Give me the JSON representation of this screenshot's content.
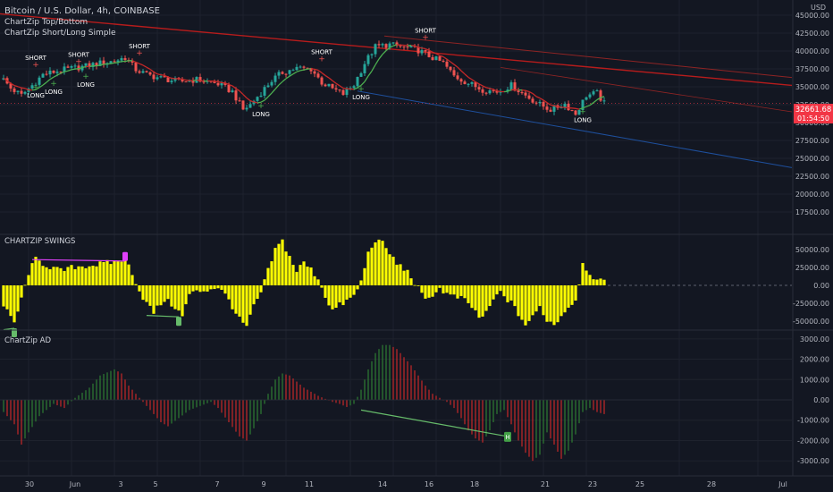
{
  "header": {
    "title": "Bitcoin / U.S. Dollar, 4h, COINBASE",
    "indicator1": "ChartZip Top/Bottom",
    "indicator2": "ChartZip Short/Long Simple",
    "currency": "USD"
  },
  "price_tag": {
    "value": "32661.68",
    "countdown": "01:54:50"
  },
  "colors": {
    "background": "#131722",
    "up": "#26a69a",
    "down": "#ef5350",
    "swings": "#ffff00",
    "ad_up": "#2e7d32",
    "ad_down": "#c62828",
    "trend_red": "#b71c1c",
    "trend_blue": "#2962ff",
    "magenta": "#e040fb",
    "green_line": "#66bb6a"
  },
  "panes": {
    "swings_title": "CHARTZIP SWINGS",
    "ad_title": "ChartZip AD"
  },
  "x_axis": {
    "labels": [
      "30",
      "Jun",
      "3",
      "5",
      "7",
      "9",
      "11",
      "14",
      "16",
      "18",
      "21",
      "23",
      "25",
      "28",
      "Jul"
    ]
  },
  "axes": {
    "price_ticks": [
      "45000.00",
      "42500.00",
      "40000.00",
      "37500.00",
      "35000.00",
      "32500.00",
      "30000.00",
      "27500.00",
      "25000.00",
      "22500.00",
      "20000.00",
      "17500.00"
    ],
    "swing_ticks": [
      "50000.00",
      "25000.00",
      "0.00",
      "-25000.00",
      "-50000.00"
    ],
    "ad_ticks": [
      "3000.00",
      "2000.00",
      "1000.00",
      "0.00",
      "-1000.00",
      "-2000.00",
      "-3000.00"
    ]
  },
  "chart_data": [
    {
      "type": "candlestick",
      "title": "Bitcoin / U.S. Dollar, 4h, COINBASE",
      "ylabel": "USD",
      "ylim": [
        15000,
        46000
      ],
      "x": [
        "30",
        "Jun",
        "3",
        "5",
        "7",
        "9",
        "11",
        "14",
        "16",
        "18",
        "21",
        "23",
        "25",
        "28",
        "Jul"
      ],
      "last_price": 32661.68,
      "anchors": [
        {
          "i": 0,
          "p": 36000
        },
        {
          "i": 2,
          "p": 34800
        },
        {
          "i": 5,
          "p": 33800
        },
        {
          "i": 8,
          "p": 35200
        },
        {
          "i": 11,
          "p": 36700
        },
        {
          "i": 16,
          "p": 37300
        },
        {
          "i": 22,
          "p": 37800
        },
        {
          "i": 27,
          "p": 38300
        },
        {
          "i": 31,
          "p": 38600
        },
        {
          "i": 34,
          "p": 39100
        },
        {
          "i": 37,
          "p": 37400
        },
        {
          "i": 40,
          "p": 36700
        },
        {
          "i": 44,
          "p": 36200
        },
        {
          "i": 49,
          "p": 35700
        },
        {
          "i": 54,
          "p": 36000
        },
        {
          "i": 60,
          "p": 35400
        },
        {
          "i": 64,
          "p": 34300
        },
        {
          "i": 67,
          "p": 31800
        },
        {
          "i": 69,
          "p": 32500
        },
        {
          "i": 72,
          "p": 34200
        },
        {
          "i": 75,
          "p": 35900
        },
        {
          "i": 78,
          "p": 37000
        },
        {
          "i": 82,
          "p": 37600
        },
        {
          "i": 86,
          "p": 37500
        },
        {
          "i": 89,
          "p": 35600
        },
        {
          "i": 92,
          "p": 34700
        },
        {
          "i": 95,
          "p": 34000
        },
        {
          "i": 98,
          "p": 35300
        },
        {
          "i": 101,
          "p": 38300
        },
        {
          "i": 104,
          "p": 40600
        },
        {
          "i": 108,
          "p": 40900
        },
        {
          "i": 112,
          "p": 40500
        },
        {
          "i": 116,
          "p": 40100
        },
        {
          "i": 119,
          "p": 39300
        },
        {
          "i": 123,
          "p": 38300
        },
        {
          "i": 126,
          "p": 36500
        },
        {
          "i": 130,
          "p": 35500
        },
        {
          "i": 134,
          "p": 34600
        },
        {
          "i": 138,
          "p": 34300
        },
        {
          "i": 142,
          "p": 35200
        },
        {
          "i": 146,
          "p": 33800
        },
        {
          "i": 150,
          "p": 32500
        },
        {
          "i": 153,
          "p": 31800
        },
        {
          "i": 157,
          "p": 32600
        },
        {
          "i": 160,
          "p": 31200
        },
        {
          "i": 163,
          "p": 33800
        },
        {
          "i": 166,
          "p": 34100
        },
        {
          "i": 168,
          "p": 32661
        }
      ],
      "signals": [
        {
          "label": "SHORT",
          "i": 9,
          "price": 37900,
          "side": "above"
        },
        {
          "label": "LONG",
          "i": 9,
          "price": 34600,
          "side": "below"
        },
        {
          "label": "LONG",
          "i": 14,
          "price": 35100,
          "side": "below"
        },
        {
          "label": "SHORT",
          "i": 21,
          "price": 38300,
          "side": "above"
        },
        {
          "label": "LONG",
          "i": 23,
          "price": 36100,
          "side": "below"
        },
        {
          "label": "SHORT",
          "i": 38,
          "price": 39500,
          "side": "above"
        },
        {
          "label": "LONG",
          "i": 72,
          "price": 32000,
          "side": "below"
        },
        {
          "label": "SHORT",
          "i": 89,
          "price": 38700,
          "side": "above"
        },
        {
          "label": "LONG",
          "i": 100,
          "price": 34400,
          "side": "below"
        },
        {
          "label": "SHORT",
          "i": 118,
          "price": 41700,
          "side": "above"
        },
        {
          "label": "LONG",
          "i": 162,
          "price": 31200,
          "side": "below"
        }
      ]
    },
    {
      "type": "bar",
      "title": "CHARTZIP SWINGS",
      "ylim": [
        -60000,
        65000
      ],
      "anchors": [
        {
          "i": 0,
          "v": -30000
        },
        {
          "i": 3,
          "v": -52000
        },
        {
          "i": 5,
          "v": -20000
        },
        {
          "i": 7,
          "v": 18000
        },
        {
          "i": 9,
          "v": 36000
        },
        {
          "i": 12,
          "v": 28000
        },
        {
          "i": 16,
          "v": 20000
        },
        {
          "i": 20,
          "v": 26000
        },
        {
          "i": 24,
          "v": 28000
        },
        {
          "i": 28,
          "v": 30000
        },
        {
          "i": 32,
          "v": 34000
        },
        {
          "i": 34,
          "v": 38000
        },
        {
          "i": 36,
          "v": 18000
        },
        {
          "i": 38,
          "v": -8000
        },
        {
          "i": 40,
          "v": -25000
        },
        {
          "i": 42,
          "v": -38000
        },
        {
          "i": 45,
          "v": -20000
        },
        {
          "i": 48,
          "v": -30000
        },
        {
          "i": 50,
          "v": -44000
        },
        {
          "i": 52,
          "v": -12000
        },
        {
          "i": 55,
          "v": -8000
        },
        {
          "i": 58,
          "v": -5000
        },
        {
          "i": 60,
          "v": -2000
        },
        {
          "i": 63,
          "v": -20000
        },
        {
          "i": 66,
          "v": -48000
        },
        {
          "i": 68,
          "v": -58000
        },
        {
          "i": 70,
          "v": -30000
        },
        {
          "i": 72,
          "v": -10000
        },
        {
          "i": 74,
          "v": 20000
        },
        {
          "i": 76,
          "v": 50000
        },
        {
          "i": 78,
          "v": 62000
        },
        {
          "i": 80,
          "v": 40000
        },
        {
          "i": 82,
          "v": 20000
        },
        {
          "i": 84,
          "v": 32000
        },
        {
          "i": 86,
          "v": 22000
        },
        {
          "i": 88,
          "v": 10000
        },
        {
          "i": 90,
          "v": -15000
        },
        {
          "i": 92,
          "v": -35000
        },
        {
          "i": 94,
          "v": -28000
        },
        {
          "i": 96,
          "v": -22000
        },
        {
          "i": 98,
          "v": -15000
        },
        {
          "i": 100,
          "v": 5000
        },
        {
          "i": 102,
          "v": 45000
        },
        {
          "i": 104,
          "v": 64000
        },
        {
          "i": 106,
          "v": 58000
        },
        {
          "i": 108,
          "v": 45000
        },
        {
          "i": 110,
          "v": 30000
        },
        {
          "i": 112,
          "v": 24000
        },
        {
          "i": 114,
          "v": 12000
        },
        {
          "i": 116,
          "v": -5000
        },
        {
          "i": 118,
          "v": -22000
        },
        {
          "i": 120,
          "v": -12000
        },
        {
          "i": 122,
          "v": -5000
        },
        {
          "i": 125,
          "v": -15000
        },
        {
          "i": 128,
          "v": -18000
        },
        {
          "i": 131,
          "v": -30000
        },
        {
          "i": 133,
          "v": -45000
        },
        {
          "i": 135,
          "v": -40000
        },
        {
          "i": 137,
          "v": -20000
        },
        {
          "i": 139,
          "v": -10000
        },
        {
          "i": 142,
          "v": -25000
        },
        {
          "i": 144,
          "v": -40000
        },
        {
          "i": 146,
          "v": -55000
        },
        {
          "i": 148,
          "v": -45000
        },
        {
          "i": 150,
          "v": -30000
        },
        {
          "i": 152,
          "v": -48000
        },
        {
          "i": 154,
          "v": -55000
        },
        {
          "i": 156,
          "v": -42000
        },
        {
          "i": 158,
          "v": -30000
        },
        {
          "i": 160,
          "v": -20000
        },
        {
          "i": 162,
          "v": 30000
        },
        {
          "i": 164,
          "v": 18000
        },
        {
          "i": 166,
          "v": 6000
        },
        {
          "i": 168,
          "v": 4000
        }
      ],
      "markers": [
        {
          "type": "magenta-line",
          "from_i": 8,
          "from_v": 36000,
          "to_i": 34,
          "to_v": 34000
        },
        {
          "type": "green-line",
          "from_i": 40,
          "from_v": -42000,
          "to_i": 49,
          "to_v": -44000
        },
        {
          "type": "green-line",
          "from_i": 0,
          "from_v": -62000,
          "to_i": 3,
          "to_v": -60000
        }
      ]
    },
    {
      "type": "bar",
      "title": "ChartZip AD",
      "ylim": [
        -3300,
        3300
      ],
      "anchors": [
        {
          "i": 0,
          "v": -600
        },
        {
          "i": 3,
          "v": -1200
        },
        {
          "i": 5,
          "v": -2200
        },
        {
          "i": 7,
          "v": -1600
        },
        {
          "i": 10,
          "v": -800
        },
        {
          "i": 14,
          "v": -200
        },
        {
          "i": 17,
          "v": -400
        },
        {
          "i": 20,
          "v": 100
        },
        {
          "i": 24,
          "v": 600
        },
        {
          "i": 27,
          "v": 1200
        },
        {
          "i": 31,
          "v": 1500
        },
        {
          "i": 33,
          "v": 1300
        },
        {
          "i": 35,
          "v": 700
        },
        {
          "i": 38,
          "v": 100
        },
        {
          "i": 40,
          "v": -300
        },
        {
          "i": 42,
          "v": -700
        },
        {
          "i": 44,
          "v": -1100
        },
        {
          "i": 46,
          "v": -1300
        },
        {
          "i": 49,
          "v": -900
        },
        {
          "i": 52,
          "v": -500
        },
        {
          "i": 55,
          "v": -300
        },
        {
          "i": 58,
          "v": -100
        },
        {
          "i": 60,
          "v": -400
        },
        {
          "i": 63,
          "v": -1100
        },
        {
          "i": 66,
          "v": -1800
        },
        {
          "i": 68,
          "v": -2000
        },
        {
          "i": 70,
          "v": -1400
        },
        {
          "i": 72,
          "v": -700
        },
        {
          "i": 74,
          "v": 300
        },
        {
          "i": 76,
          "v": 1000
        },
        {
          "i": 78,
          "v": 1300
        },
        {
          "i": 80,
          "v": 1200
        },
        {
          "i": 82,
          "v": 900
        },
        {
          "i": 84,
          "v": 600
        },
        {
          "i": 86,
          "v": 400
        },
        {
          "i": 88,
          "v": 200
        },
        {
          "i": 90,
          "v": 50
        },
        {
          "i": 92,
          "v": -100
        },
        {
          "i": 94,
          "v": -200
        },
        {
          "i": 96,
          "v": -350
        },
        {
          "i": 98,
          "v": -200
        },
        {
          "i": 100,
          "v": 500
        },
        {
          "i": 102,
          "v": 1500
        },
        {
          "i": 104,
          "v": 2300
        },
        {
          "i": 106,
          "v": 2700
        },
        {
          "i": 108,
          "v": 2700
        },
        {
          "i": 110,
          "v": 2500
        },
        {
          "i": 112,
          "v": 2100
        },
        {
          "i": 114,
          "v": 1700
        },
        {
          "i": 116,
          "v": 1200
        },
        {
          "i": 118,
          "v": 700
        },
        {
          "i": 120,
          "v": 300
        },
        {
          "i": 122,
          "v": 100
        },
        {
          "i": 124,
          "v": -100
        },
        {
          "i": 126,
          "v": -400
        },
        {
          "i": 128,
          "v": -900
        },
        {
          "i": 130,
          "v": -1500
        },
        {
          "i": 132,
          "v": -1900
        },
        {
          "i": 134,
          "v": -2100
        },
        {
          "i": 136,
          "v": -1500
        },
        {
          "i": 138,
          "v": -700
        },
        {
          "i": 140,
          "v": -500
        },
        {
          "i": 142,
          "v": -1200
        },
        {
          "i": 144,
          "v": -2000
        },
        {
          "i": 146,
          "v": -2600
        },
        {
          "i": 148,
          "v": -3000
        },
        {
          "i": 150,
          "v": -2700
        },
        {
          "i": 152,
          "v": -1600
        },
        {
          "i": 154,
          "v": -2200
        },
        {
          "i": 156,
          "v": -2900
        },
        {
          "i": 158,
          "v": -2500
        },
        {
          "i": 160,
          "v": -1700
        },
        {
          "i": 162,
          "v": -600
        },
        {
          "i": 164,
          "v": -400
        },
        {
          "i": 166,
          "v": -600
        },
        {
          "i": 168,
          "v": -700
        }
      ],
      "markers": [
        {
          "type": "green-line",
          "from_i": 100,
          "from_v": -500,
          "to_i": 141,
          "to_v": -1800,
          "label": "H"
        }
      ]
    }
  ]
}
